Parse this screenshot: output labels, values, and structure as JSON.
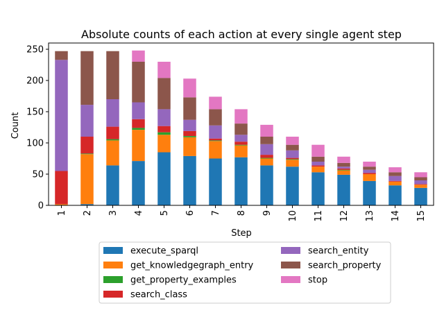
{
  "chart_data": {
    "type": "bar",
    "stacked": true,
    "title": "Absolute counts of each action at every single agent step",
    "xlabel": "Step",
    "ylabel": "Count",
    "ylim": [
      0,
      260
    ],
    "yticks": [
      0,
      50,
      100,
      150,
      200,
      250
    ],
    "grid": false,
    "legend_position": "bottom-center",
    "categories": [
      "1",
      "2",
      "3",
      "4",
      "5",
      "6",
      "7",
      "8",
      "9",
      "10",
      "11",
      "12",
      "13",
      "14",
      "15"
    ],
    "series": [
      {
        "name": "execute_sparql",
        "color": "#1f77b4",
        "values": [
          0,
          2,
          64,
          71,
          85,
          79,
          75,
          77,
          64,
          62,
          53,
          49,
          39,
          32,
          28
        ]
      },
      {
        "name": "get_knowledgegraph_entry",
        "color": "#ff7f0e",
        "values": [
          2,
          80,
          40,
          50,
          28,
          30,
          28,
          19,
          11,
          11,
          9,
          7,
          11,
          6,
          5
        ]
      },
      {
        "name": "get_property_examples",
        "color": "#2ca02c",
        "values": [
          0,
          1,
          2,
          3,
          4,
          2,
          1,
          1,
          1,
          1,
          0,
          1,
          0,
          0,
          0
        ]
      },
      {
        "name": "search_class",
        "color": "#d62728",
        "values": [
          53,
          27,
          20,
          14,
          10,
          8,
          3,
          5,
          5,
          2,
          2,
          2,
          2,
          1,
          1
        ]
      },
      {
        "name": "search_entity",
        "color": "#9467bd",
        "values": [
          178,
          51,
          44,
          27,
          27,
          18,
          21,
          11,
          17,
          12,
          6,
          3,
          5,
          8,
          6
        ]
      },
      {
        "name": "search_property",
        "color": "#8c564b",
        "values": [
          14,
          86,
          77,
          65,
          50,
          36,
          26,
          18,
          12,
          9,
          8,
          6,
          5,
          6,
          5
        ]
      },
      {
        "name": "stop",
        "color": "#e377c2",
        "values": [
          0,
          0,
          0,
          18,
          26,
          30,
          20,
          23,
          19,
          13,
          19,
          10,
          8,
          8,
          8
        ]
      }
    ]
  }
}
